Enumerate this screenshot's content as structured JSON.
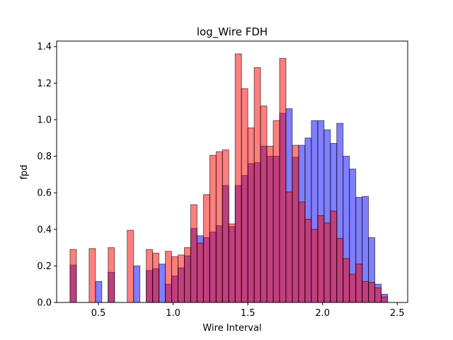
{
  "chart_data": {
    "type": "bar",
    "title": "log_Wire  FDH",
    "xlabel": "Wire Interval",
    "ylabel": "fpd",
    "xlim": [
      0.22,
      2.57
    ],
    "ylim": [
      0,
      1.43
    ],
    "xticks": [
      0.5,
      1.0,
      1.5,
      2.0,
      2.5
    ],
    "xtick_labels": [
      "0.5",
      "1.0",
      "1.5",
      "2.0",
      "2.5"
    ],
    "yticks": [
      0.0,
      0.2,
      0.4,
      0.6,
      0.8,
      1.0,
      1.2,
      1.4
    ],
    "ytick_labels": [
      "0.0",
      "0.2",
      "0.4",
      "0.6",
      "0.8",
      "1.0",
      "1.2",
      "1.4"
    ],
    "grid": false,
    "series": [
      {
        "color": "#0000ff",
        "opacity": 0.5,
        "bin_start": 0.31,
        "bin_width": 0.0425,
        "values": [
          0.205,
          0.0,
          0.0,
          0.0,
          0.115,
          0.0,
          0.165,
          0.0,
          0.0,
          0.0,
          0.2,
          0.0,
          0.175,
          0.185,
          0.21,
          0.1,
          0.145,
          0.19,
          0.255,
          0.405,
          0.365,
          0.355,
          0.385,
          0.42,
          0.64,
          0.415,
          0.64,
          0.695,
          0.76,
          0.765,
          0.855,
          0.8,
          0.8,
          1.035,
          1.06,
          0.795,
          0.86,
          0.9,
          0.995,
          0.995,
          0.945,
          0.87,
          0.98,
          0.8,
          0.73,
          0.575,
          0.58,
          0.355,
          0.1,
          0.045
        ]
      },
      {
        "color": "#ff0000",
        "opacity": 0.5,
        "bin_start": 0.31,
        "bin_width": 0.0425,
        "values": [
          0.29,
          0.0,
          0.0,
          0.295,
          0.0,
          0.0,
          0.3,
          0.0,
          0.0,
          0.395,
          0.0,
          0.0,
          0.29,
          0.27,
          0.0,
          0.28,
          0.25,
          0.26,
          0.3,
          0.535,
          0.325,
          0.59,
          0.805,
          0.825,
          0.835,
          0.43,
          1.36,
          1.17,
          0.955,
          1.285,
          1.075,
          0.855,
          0.995,
          1.335,
          0.605,
          0.86,
          0.55,
          0.455,
          0.4,
          0.475,
          0.435,
          0.5,
          0.35,
          0.24,
          0.155,
          0.21,
          0.115,
          0.11,
          0.08,
          0.03
        ]
      }
    ]
  }
}
